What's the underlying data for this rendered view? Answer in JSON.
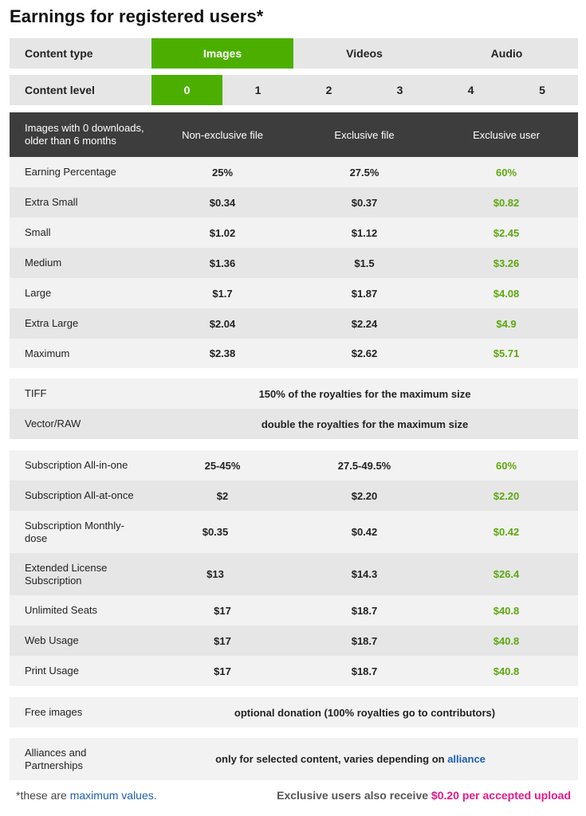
{
  "title": "Earnings for registered users*",
  "content_type": {
    "label": "Content type",
    "options": [
      "Images",
      "Videos",
      "Audio"
    ],
    "selected": "Images"
  },
  "content_level": {
    "label": "Content level",
    "options": [
      "0",
      "1",
      "2",
      "3",
      "4",
      "5"
    ],
    "selected": "0"
  },
  "table_header": {
    "description": "Images with 0 downloads, older than 6 months",
    "col1": "Non-exclusive file",
    "col2": "Exclusive file",
    "col3": "Exclusive user"
  },
  "size_rows": [
    {
      "label": "Earning Percentage",
      "non_exclusive": "25%",
      "exclusive_file": "27.5%",
      "exclusive_user": "60%"
    },
    {
      "label": "Extra Small",
      "non_exclusive": "$0.34",
      "exclusive_file": "$0.37",
      "exclusive_user": "$0.82"
    },
    {
      "label": "Small",
      "non_exclusive": "$1.02",
      "exclusive_file": "$1.12",
      "exclusive_user": "$2.45"
    },
    {
      "label": "Medium",
      "non_exclusive": "$1.36",
      "exclusive_file": "$1.5",
      "exclusive_user": "$3.26"
    },
    {
      "label": "Large",
      "non_exclusive": "$1.7",
      "exclusive_file": "$1.87",
      "exclusive_user": "$4.08"
    },
    {
      "label": "Extra Large",
      "non_exclusive": "$2.04",
      "exclusive_file": "$2.24",
      "exclusive_user": "$4.9"
    },
    {
      "label": "Maximum",
      "non_exclusive": "$2.38",
      "exclusive_file": "$2.62",
      "exclusive_user": "$5.71"
    }
  ],
  "format_rows": [
    {
      "label": "TIFF",
      "value": "150% of the royalties for the maximum size"
    },
    {
      "label": "Vector/RAW",
      "value": "double the royalties for the maximum size"
    }
  ],
  "subscription_rows": [
    {
      "label": "Subscription All-in-one",
      "non_exclusive": "25-45%",
      "exclusive_file": "27.5-49.5%",
      "exclusive_user": "60%"
    },
    {
      "label": "Subscription All-at-once",
      "non_exclusive": "$2",
      "exclusive_file": "$2.20",
      "exclusive_user": "$2.20"
    },
    {
      "label": "Subscription Monthly-dose",
      "non_exclusive": "$0.35",
      "exclusive_file": "$0.42",
      "exclusive_user": "$0.42"
    },
    {
      "label": "Extended License Subscription",
      "non_exclusive": "$13",
      "exclusive_file": "$14.3",
      "exclusive_user": "$26.4"
    },
    {
      "label": "Unlimited Seats",
      "non_exclusive": "$17",
      "exclusive_file": "$18.7",
      "exclusive_user": "$40.8"
    },
    {
      "label": "Web Usage",
      "non_exclusive": "$17",
      "exclusive_file": "$18.7",
      "exclusive_user": "$40.8"
    },
    {
      "label": "Print Usage",
      "non_exclusive": "$17",
      "exclusive_file": "$18.7",
      "exclusive_user": "$40.8"
    }
  ],
  "free_images": {
    "label": "Free images",
    "value": "optional donation (100% royalties go to contributors)"
  },
  "alliances": {
    "label": "Alliances and Partnerships",
    "value_prefix": "only for selected content, varies depending on ",
    "value_link": "alliance"
  },
  "footer": {
    "note_prefix": "*these are ",
    "note_link": "maximum values.",
    "bonus_prefix": "Exclusive users also receive ",
    "bonus_highlight": "$0.20 per accepted upload"
  },
  "colors": {
    "accent_green": "#4caf00",
    "value_green": "#5ea80e",
    "header_dark": "#3d3d3d",
    "link_blue": "#1d5fae",
    "highlight_pink": "#e5198a"
  }
}
